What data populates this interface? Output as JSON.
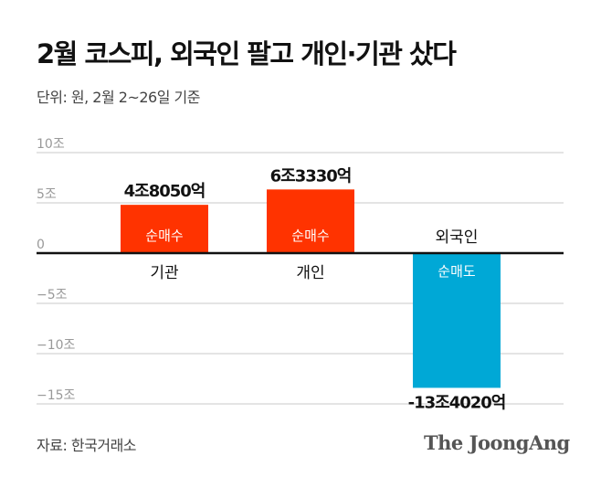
{
  "title": "2월 코스피, 외국인 팔고 개인·기관 샀다",
  "subtitle": "단위: 원, 2월 2~26일 기준",
  "source": "자료: 한국거래소",
  "logo": "The JoongAng",
  "chart_data": {
    "type": "bar",
    "title": "2월 코스피, 외국인 팔고 개인·기관 샀다",
    "unit": "조 원",
    "categories": [
      "기관",
      "개인",
      "외국인"
    ],
    "values": [
      4.805,
      6.333,
      -13.402
    ],
    "value_labels": [
      "4조8050억",
      "6조3330억",
      "-13조4020억"
    ],
    "inner_labels": [
      "순매수",
      "순매수",
      "순매도"
    ],
    "colors": [
      "#ff3300",
      "#ff3300",
      "#00a8d6"
    ],
    "ylim": [
      -15,
      10
    ],
    "yticks": [
      10,
      5,
      0,
      -5,
      -10,
      -15
    ],
    "ytick_labels": [
      "10조",
      "5조",
      "0",
      "−5조",
      "−10조",
      "−15조"
    ],
    "grid": true,
    "legend": "none"
  }
}
